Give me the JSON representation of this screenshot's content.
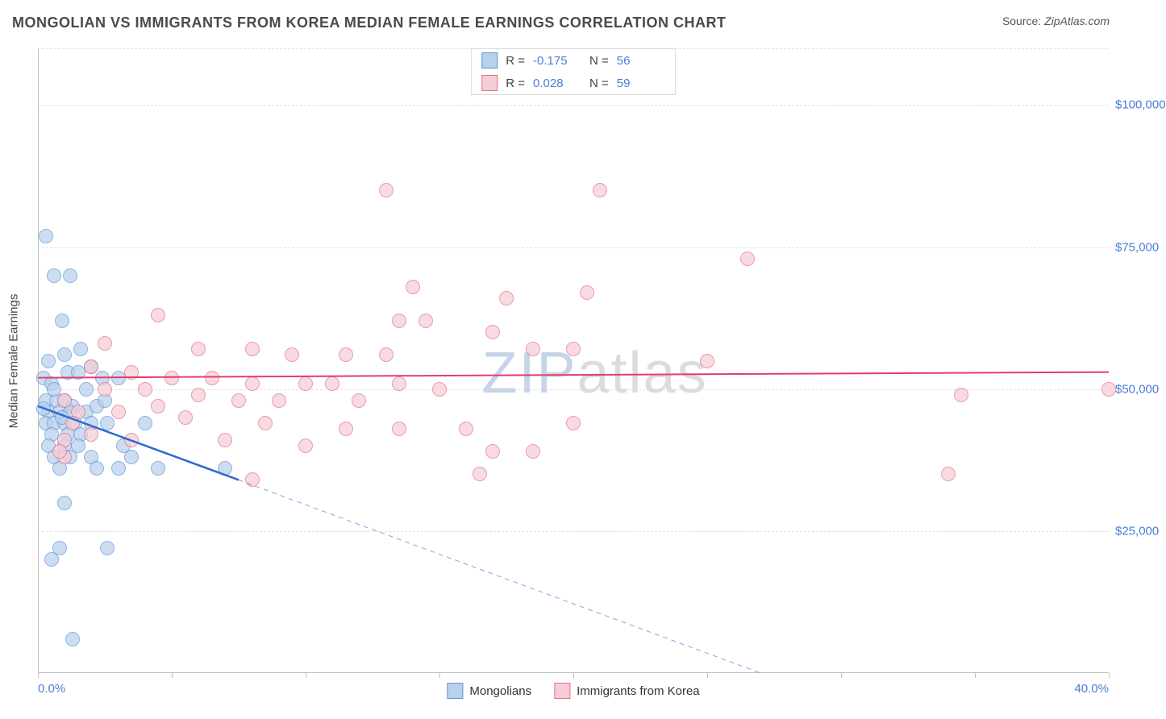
{
  "header": {
    "title": "MONGOLIAN VS IMMIGRANTS FROM KOREA MEDIAN FEMALE EARNINGS CORRELATION CHART",
    "source_label": "Source: ",
    "source_value": "ZipAtlas.com"
  },
  "chart": {
    "type": "scatter",
    "ylabel": "Median Female Earnings",
    "watermark_a": "ZIP",
    "watermark_b": "atlas",
    "watermark_color_a": "#c6d4e8",
    "watermark_color_b": "#dcdcdc",
    "background_color": "#ffffff",
    "grid_color": "#e0e0e0",
    "axis_color": "#bfbfbf",
    "tick_label_color": "#4a7dd6",
    "xlim": [
      0,
      40
    ],
    "ylim": [
      0,
      110000
    ],
    "y_ticks": [
      {
        "v": 25000,
        "label": "$25,000"
      },
      {
        "v": 50000,
        "label": "$50,000"
      },
      {
        "v": 75000,
        "label": "$75,000"
      },
      {
        "v": 100000,
        "label": "$100,000"
      }
    ],
    "x_tick_step": 5,
    "x_labels": {
      "min": "0.0%",
      "max": "40.0%"
    },
    "marker_radius": 9,
    "series": [
      {
        "key": "mongolians",
        "name": "Mongolians",
        "fill": "#b8d0ec",
        "stroke": "#5d94d6",
        "line_color": "#2e6bd0",
        "line_width": 2.5,
        "R": "-0.175",
        "N": "56",
        "trend": {
          "x1": 0,
          "y1": 47000,
          "x2": 7.5,
          "y2": 34000,
          "dash_to_x": 27,
          "dash_to_y": 0
        },
        "points": [
          [
            0.3,
            77000
          ],
          [
            0.6,
            70000
          ],
          [
            1.2,
            70000
          ],
          [
            0.9,
            62000
          ],
          [
            1.0,
            56000
          ],
          [
            0.4,
            55000
          ],
          [
            1.6,
            57000
          ],
          [
            0.2,
            52000
          ],
          [
            0.5,
            51000
          ],
          [
            1.1,
            53000
          ],
          [
            1.5,
            53000
          ],
          [
            2.0,
            54000
          ],
          [
            2.4,
            52000
          ],
          [
            3.0,
            52000
          ],
          [
            0.3,
            48000
          ],
          [
            0.7,
            48000
          ],
          [
            1.0,
            48000
          ],
          [
            1.3,
            47000
          ],
          [
            0.4,
            46000
          ],
          [
            0.8,
            46000
          ],
          [
            1.2,
            46000
          ],
          [
            1.8,
            46000
          ],
          [
            2.2,
            47000
          ],
          [
            0.3,
            44000
          ],
          [
            0.6,
            44000
          ],
          [
            1.0,
            44000
          ],
          [
            1.4,
            44000
          ],
          [
            2.0,
            44000
          ],
          [
            2.6,
            44000
          ],
          [
            0.5,
            42000
          ],
          [
            1.1,
            42000
          ],
          [
            1.6,
            42000
          ],
          [
            4.0,
            44000
          ],
          [
            0.4,
            40000
          ],
          [
            1.0,
            40000
          ],
          [
            1.5,
            40000
          ],
          [
            0.6,
            38000
          ],
          [
            1.2,
            38000
          ],
          [
            2.0,
            38000
          ],
          [
            3.5,
            38000
          ],
          [
            0.8,
            36000
          ],
          [
            2.2,
            36000
          ],
          [
            3.0,
            36000
          ],
          [
            4.5,
            36000
          ],
          [
            7.0,
            36000
          ],
          [
            1.0,
            30000
          ],
          [
            0.8,
            22000
          ],
          [
            2.6,
            22000
          ],
          [
            0.5,
            20000
          ],
          [
            1.3,
            6000
          ],
          [
            0.6,
            50000
          ],
          [
            1.8,
            50000
          ],
          [
            2.5,
            48000
          ],
          [
            3.2,
            40000
          ],
          [
            0.2,
            46500
          ],
          [
            0.9,
            45000
          ]
        ]
      },
      {
        "key": "korea",
        "name": "Immigrants from Korea",
        "fill": "#f6cdd5",
        "stroke": "#e36f8a",
        "line_color": "#e23d6d",
        "line_width": 2,
        "R": "0.028",
        "N": "59",
        "trend": {
          "x1": 0,
          "y1": 52000,
          "x2": 40,
          "y2": 53000
        },
        "points": [
          [
            13.0,
            85000
          ],
          [
            21.0,
            85000
          ],
          [
            26.5,
            73000
          ],
          [
            14.0,
            68000
          ],
          [
            17.5,
            66000
          ],
          [
            20.5,
            67000
          ],
          [
            4.5,
            63000
          ],
          [
            13.5,
            62000
          ],
          [
            14.5,
            62000
          ],
          [
            17.0,
            60000
          ],
          [
            2.5,
            58000
          ],
          [
            6.0,
            57000
          ],
          [
            8.0,
            57000
          ],
          [
            9.5,
            56000
          ],
          [
            11.5,
            56000
          ],
          [
            13.0,
            56000
          ],
          [
            18.5,
            57000
          ],
          [
            20.0,
            57000
          ],
          [
            25.0,
            55000
          ],
          [
            2.0,
            54000
          ],
          [
            3.5,
            53000
          ],
          [
            5.0,
            52000
          ],
          [
            6.5,
            52000
          ],
          [
            8.0,
            51000
          ],
          [
            10.0,
            51000
          ],
          [
            11.0,
            51000
          ],
          [
            13.5,
            51000
          ],
          [
            15.0,
            50000
          ],
          [
            2.5,
            50000
          ],
          [
            4.0,
            50000
          ],
          [
            6.0,
            49000
          ],
          [
            7.5,
            48000
          ],
          [
            9.0,
            48000
          ],
          [
            34.5,
            49000
          ],
          [
            40.0,
            50000
          ],
          [
            1.5,
            46000
          ],
          [
            3.0,
            46000
          ],
          [
            5.5,
            45000
          ],
          [
            8.5,
            44000
          ],
          [
            11.5,
            43000
          ],
          [
            13.5,
            43000
          ],
          [
            16.0,
            43000
          ],
          [
            20.0,
            44000
          ],
          [
            3.5,
            41000
          ],
          [
            7.0,
            41000
          ],
          [
            10.0,
            40000
          ],
          [
            17.0,
            39000
          ],
          [
            18.5,
            39000
          ],
          [
            1.0,
            38000
          ],
          [
            8.0,
            34000
          ],
          [
            16.5,
            35000
          ],
          [
            34.0,
            35000
          ],
          [
            1.0,
            48000
          ],
          [
            1.3,
            44000
          ],
          [
            1.0,
            41000
          ],
          [
            0.8,
            39000
          ],
          [
            2.0,
            42000
          ],
          [
            4.5,
            47000
          ],
          [
            12.0,
            48000
          ]
        ]
      }
    ],
    "legend_bottom": [
      {
        "series": "mongolians"
      },
      {
        "series": "korea"
      }
    ]
  }
}
